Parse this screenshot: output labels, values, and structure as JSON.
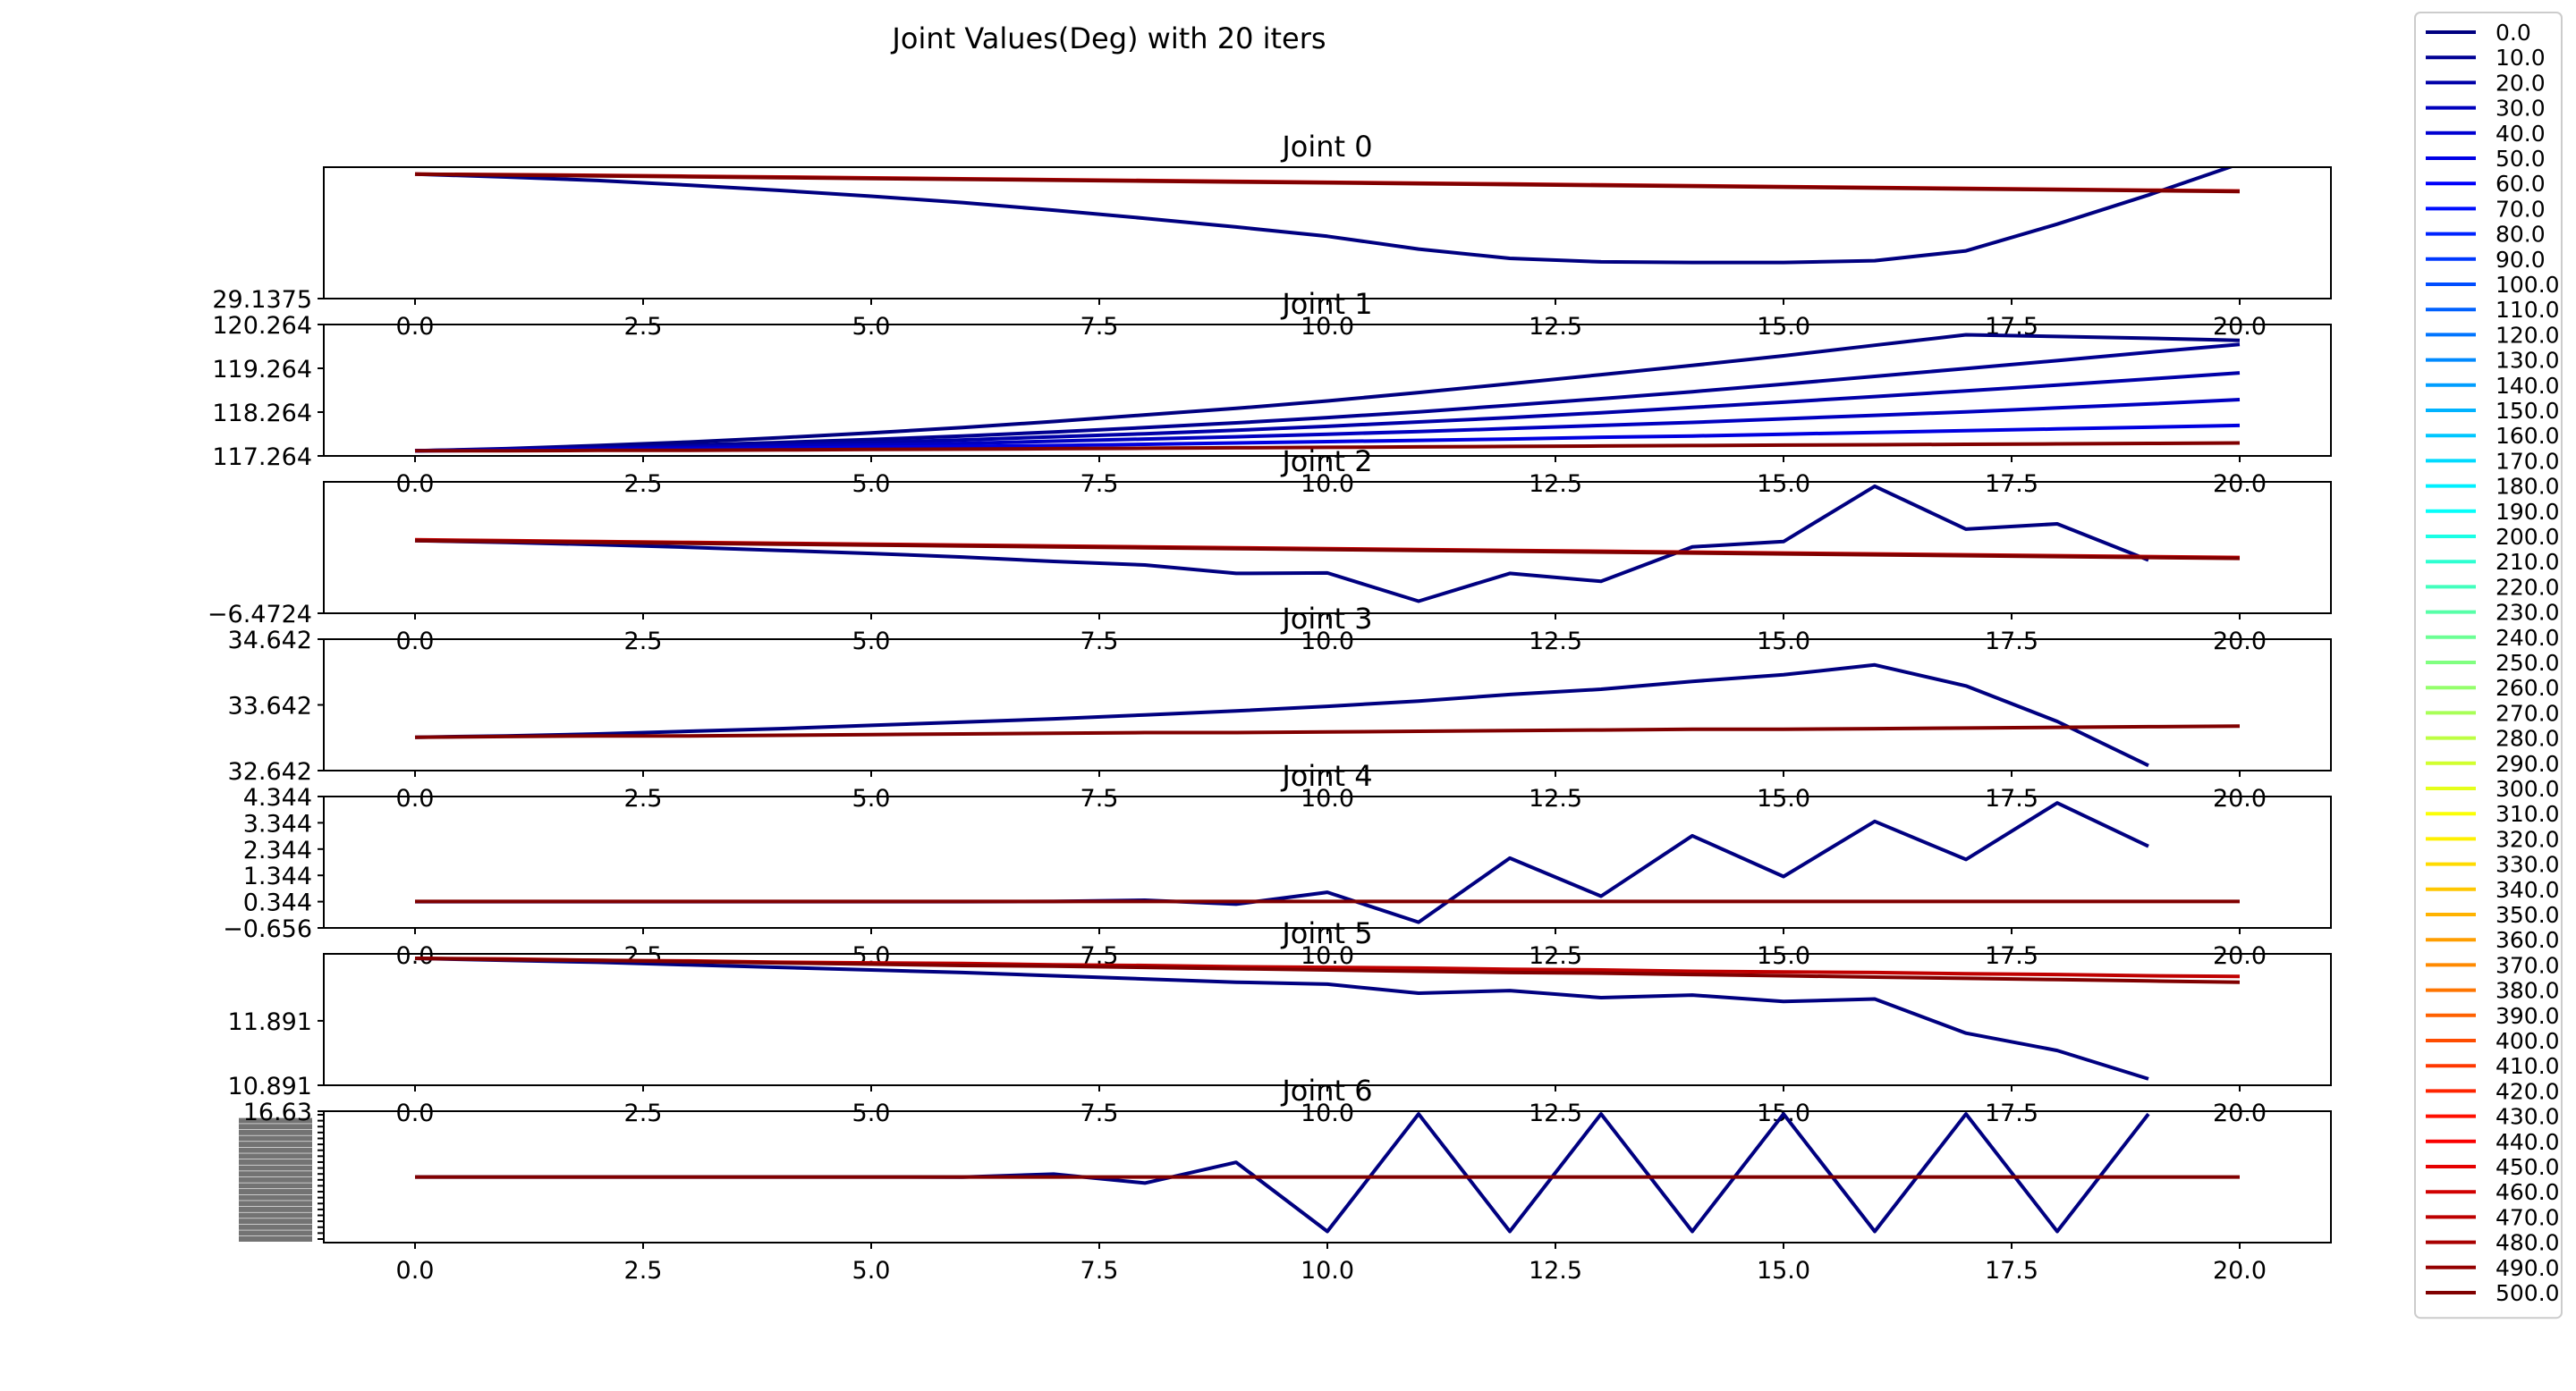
{
  "figure": {
    "title": "Joint Values(Deg) with 20 iters"
  },
  "legend": {
    "placement": "outside-right",
    "entries": [
      "0.0",
      "10.0",
      "20.0",
      "30.0",
      "40.0",
      "50.0",
      "60.0",
      "70.0",
      "80.0",
      "90.0",
      "100.0",
      "110.0",
      "120.0",
      "130.0",
      "140.0",
      "150.0",
      "160.0",
      "170.0",
      "180.0",
      "190.0",
      "200.0",
      "210.0",
      "220.0",
      "230.0",
      "240.0",
      "250.0",
      "260.0",
      "270.0",
      "280.0",
      "290.0",
      "300.0",
      "310.0",
      "320.0",
      "330.0",
      "340.0",
      "350.0",
      "360.0",
      "370.0",
      "380.0",
      "390.0",
      "400.0",
      "410.0",
      "420.0",
      "430.0",
      "440.0",
      "450.0",
      "460.0",
      "470.0",
      "480.0",
      "490.0",
      "500.0"
    ],
    "colormap": "jet"
  },
  "colors": {
    "first_series": "#000080",
    "last_series": "#800000",
    "axis": "#000000",
    "background": "#ffffff"
  },
  "chart_data": [
    {
      "type": "line",
      "title": "Joint 0",
      "x_ticks": [
        "0.0",
        "2.5",
        "5.0",
        "7.5",
        "10.0",
        "12.5",
        "15.0",
        "17.5",
        "20.0"
      ],
      "y_ticks": [
        "29.1375"
      ],
      "ylim": [
        29.1375,
        31.4
      ],
      "series": [
        {
          "values": [
            31.28,
            31.23,
            31.17,
            31.09,
            31.0,
            30.9,
            30.79,
            30.66,
            30.52,
            30.37,
            30.21,
            29.99,
            29.83,
            29.77,
            29.76,
            29.76,
            29.79,
            29.96,
            30.42,
            30.92,
            31.46
          ],
          "color": "#000080"
        },
        {
          "values": [
            31.28,
            31.27,
            31.26,
            31.245,
            31.23,
            31.215,
            31.2,
            31.185,
            31.17,
            31.155,
            31.14,
            31.125,
            31.11,
            31.095,
            31.08,
            31.065,
            31.05,
            31.035,
            31.02,
            31.005,
            30.99
          ],
          "color": "#c00000"
        },
        {
          "values": [
            31.28,
            31.265,
            31.25,
            31.235,
            31.22,
            31.205,
            31.19,
            31.175,
            31.16,
            31.145,
            31.13,
            31.115,
            31.1,
            31.085,
            31.07,
            31.055,
            31.04,
            31.025,
            31.01,
            30.995,
            30.98
          ],
          "color": "#800000"
        }
      ]
    },
    {
      "type": "line",
      "title": "Joint 1",
      "x_ticks": [
        "0.0",
        "2.5",
        "5.0",
        "7.5",
        "10.0",
        "12.5",
        "15.0",
        "17.5",
        "20.0"
      ],
      "y_ticks": [
        "117.264",
        "118.264",
        "119.264",
        "120.264"
      ],
      "ylim": [
        117.264,
        120.264
      ],
      "series": [
        {
          "values": [
            117.38,
            117.43,
            117.5,
            117.58,
            117.68,
            117.79,
            117.91,
            118.05,
            118.2,
            118.35,
            118.52,
            118.71,
            118.91,
            119.12,
            119.33,
            119.55,
            119.79,
            120.03,
            119.99,
            119.95,
            119.9
          ],
          "color": "#000080"
        },
        {
          "values": [
            117.38,
            117.42,
            117.46,
            117.51,
            117.57,
            117.64,
            117.72,
            117.81,
            117.91,
            118.02,
            118.14,
            118.27,
            118.42,
            118.57,
            118.73,
            118.9,
            119.08,
            119.26,
            119.44,
            119.63,
            119.81
          ],
          "color": "#000090"
        },
        {
          "values": [
            117.38,
            117.41,
            117.44,
            117.48,
            117.52,
            117.57,
            117.63,
            117.7,
            117.77,
            117.85,
            117.94,
            118.04,
            118.14,
            118.25,
            118.37,
            118.49,
            118.62,
            118.75,
            118.88,
            119.02,
            119.16
          ],
          "color": "#0000a8"
        },
        {
          "values": [
            117.38,
            117.4,
            117.42,
            117.45,
            117.48,
            117.51,
            117.55,
            117.6,
            117.65,
            117.7,
            117.76,
            117.82,
            117.89,
            117.96,
            118.03,
            118.11,
            118.19,
            118.27,
            118.36,
            118.45,
            118.55
          ],
          "color": "#0000c0"
        },
        {
          "values": [
            117.38,
            117.39,
            117.41,
            117.42,
            117.44,
            117.46,
            117.48,
            117.5,
            117.53,
            117.56,
            117.59,
            117.62,
            117.65,
            117.69,
            117.72,
            117.76,
            117.8,
            117.84,
            117.88,
            117.92,
            117.96
          ],
          "color": "#0000e0"
        },
        {
          "values": [
            117.38,
            117.38,
            117.39,
            117.39,
            117.4,
            117.41,
            117.42,
            117.43,
            117.44,
            117.45,
            117.46,
            117.47,
            117.48,
            117.49,
            117.5,
            117.51,
            117.52,
            117.53,
            117.54,
            117.55,
            117.56
          ],
          "color": "#800000"
        }
      ]
    },
    {
      "type": "line",
      "title": "Joint 2",
      "x_ticks": [
        "0.0",
        "2.5",
        "5.0",
        "7.5",
        "10.0",
        "12.5",
        "15.0",
        "17.5",
        "20.0"
      ],
      "y_ticks": [
        "−6.4724"
      ],
      "ylim": [
        -6.4724,
        -3.5
      ],
      "series": [
        {
          "values": [
            -4.83,
            -4.87,
            -4.92,
            -4.98,
            -5.05,
            -5.12,
            -5.2,
            -5.3,
            -5.38,
            -5.57,
            -5.56,
            -6.2,
            -5.57,
            -5.75,
            -4.97,
            -4.85,
            -3.6,
            -4.57,
            -4.45,
            -5.27,
            null
          ],
          "color": "#000080"
        },
        {
          "values": [
            -4.81,
            -4.83,
            -4.85,
            -4.87,
            -4.89,
            -4.91,
            -4.93,
            -4.95,
            -4.97,
            -4.99,
            -5.01,
            -5.03,
            -5.05,
            -5.07,
            -5.09,
            -5.11,
            -5.13,
            -5.15,
            -5.17,
            -5.19,
            -5.21
          ],
          "color": "#c00000"
        },
        {
          "values": [
            -4.83,
            -4.85,
            -4.87,
            -4.89,
            -4.91,
            -4.93,
            -4.95,
            -4.97,
            -4.99,
            -5.01,
            -5.03,
            -5.05,
            -5.07,
            -5.09,
            -5.11,
            -5.13,
            -5.15,
            -5.17,
            -5.19,
            -5.21,
            -5.23
          ],
          "color": "#800000"
        }
      ]
    },
    {
      "type": "line",
      "title": "Joint 3",
      "x_ticks": [
        "0.0",
        "2.5",
        "5.0",
        "7.5",
        "10.0",
        "12.5",
        "15.0",
        "17.5",
        "20.0"
      ],
      "y_ticks": [
        "32.642",
        "33.642",
        "34.642"
      ],
      "ylim": [
        32.642,
        34.642
      ],
      "series": [
        {
          "values": [
            33.15,
            33.17,
            33.2,
            33.24,
            33.28,
            33.33,
            33.38,
            33.43,
            33.49,
            33.55,
            33.62,
            33.7,
            33.8,
            33.88,
            34.0,
            34.1,
            34.25,
            33.93,
            33.39,
            32.72,
            null
          ],
          "color": "#000080"
        },
        {
          "values": [
            33.15,
            33.16,
            33.17,
            33.17,
            33.18,
            33.19,
            33.2,
            33.21,
            33.22,
            33.22,
            33.23,
            33.24,
            33.25,
            33.26,
            33.27,
            33.27,
            33.28,
            33.29,
            33.3,
            33.31,
            33.32
          ],
          "color": "#800000"
        }
      ]
    },
    {
      "type": "line",
      "title": "Joint 4",
      "x_ticks": [
        "0.0",
        "2.5",
        "5.0",
        "7.5",
        "10.0",
        "12.5",
        "15.0",
        "17.5",
        "20.0"
      ],
      "y_ticks": [
        "−0.656",
        "0.344",
        "1.344",
        "2.344",
        "3.344",
        "4.344"
      ],
      "ylim": [
        -0.656,
        4.344
      ],
      "series": [
        {
          "values": [
            0.344,
            0.344,
            0.344,
            0.344,
            0.344,
            0.344,
            0.344,
            0.35,
            0.4,
            0.25,
            0.7,
            -0.44,
            2.0,
            0.55,
            2.85,
            1.3,
            3.4,
            1.95,
            4.1,
            2.45,
            null
          ],
          "color": "#000080"
        },
        {
          "values": [
            0.35,
            0.35,
            0.35,
            0.35,
            0.35,
            0.35,
            0.35,
            0.35,
            0.35,
            0.35,
            0.35,
            0.35,
            0.35,
            0.35,
            0.35,
            0.35,
            0.35,
            0.35,
            0.35,
            0.35,
            0.35
          ],
          "color": "#800000"
        }
      ]
    },
    {
      "type": "line",
      "title": "Joint 5",
      "x_ticks": [
        "0.0",
        "2.5",
        "5.0",
        "7.5",
        "10.0",
        "12.5",
        "15.0",
        "17.5",
        "20.0"
      ],
      "y_ticks": [
        "10.891",
        "11.891"
      ],
      "ylim": [
        10.891,
        12.93
      ],
      "series": [
        {
          "values": [
            12.86,
            12.83,
            12.8,
            12.76,
            12.72,
            12.68,
            12.64,
            12.59,
            12.54,
            12.49,
            12.46,
            12.32,
            12.36,
            12.25,
            12.29,
            12.19,
            12.23,
            11.7,
            11.43,
            10.99,
            null
          ],
          "color": "#000080"
        },
        {
          "values": [
            12.86,
            12.85,
            12.83,
            12.82,
            12.8,
            12.79,
            12.78,
            12.76,
            12.75,
            12.73,
            12.72,
            12.71,
            12.69,
            12.68,
            12.66,
            12.65,
            12.64,
            12.62,
            12.61,
            12.59,
            12.58
          ],
          "color": "#c00000"
        },
        {
          "values": [
            12.86,
            12.84,
            12.83,
            12.81,
            12.79,
            12.77,
            12.75,
            12.74,
            12.72,
            12.7,
            12.68,
            12.66,
            12.64,
            12.63,
            12.61,
            12.59,
            12.57,
            12.55,
            12.53,
            12.51,
            12.49
          ],
          "color": "#800000"
        }
      ]
    },
    {
      "type": "line",
      "title": "Joint 6",
      "x_label": "",
      "x_ticks": [
        "0.0",
        "2.5",
        "5.0",
        "7.5",
        "10.0",
        "12.5",
        "15.0",
        "17.5",
        "20.0"
      ],
      "y_ticks_note": "overlapping tick labels (illegible), top label reads 16.63",
      "y_ticks": [
        "16.63"
      ],
      "ylim": [
        -4.0,
        16.63
      ],
      "series": [
        {
          "values": [
            6.3,
            6.3,
            6.3,
            6.3,
            6.3,
            6.3,
            6.28,
            6.75,
            5.35,
            8.6,
            -2.25,
            16.2,
            -2.25,
            16.2,
            -2.25,
            16.2,
            -2.25,
            16.2,
            -2.25,
            16.2,
            null
          ],
          "color": "#000080"
        },
        {
          "values": [
            6.3,
            6.3,
            6.3,
            6.3,
            6.3,
            6.3,
            6.3,
            6.3,
            6.3,
            6.3,
            6.3,
            6.3,
            6.3,
            6.3,
            6.3,
            6.3,
            6.3,
            6.3,
            6.3,
            6.3,
            6.3
          ],
          "color": "#800000"
        }
      ]
    }
  ]
}
